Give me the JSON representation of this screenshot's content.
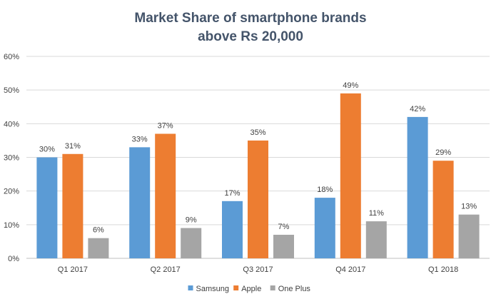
{
  "chart_data": {
    "type": "bar",
    "title_lines": [
      "Market Share of smartphone brands",
      "above Rs 20,000"
    ],
    "categories": [
      "Q1 2017",
      "Q2 2017",
      "Q3 2017",
      "Q4 2017",
      "Q1 2018"
    ],
    "series": [
      {
        "name": "Samsung",
        "color": "#5b9bd5",
        "values": [
          30,
          33,
          17,
          18,
          42
        ],
        "labels": [
          "30%",
          "33%",
          "17%",
          "18%",
          "42%"
        ]
      },
      {
        "name": "Apple",
        "color": "#ed7d31",
        "values": [
          31,
          37,
          35,
          49,
          29
        ],
        "labels": [
          "31%",
          "37%",
          "35%",
          "49%",
          "29%"
        ]
      },
      {
        "name": "One Plus",
        "color": "#a5a5a5",
        "values": [
          6,
          9,
          7,
          11,
          13
        ],
        "labels": [
          "6%",
          "9%",
          "7%",
          "11%",
          "13%"
        ]
      }
    ],
    "ylim": [
      0,
      60
    ],
    "yticks": [
      "0%",
      "10%",
      "20%",
      "30%",
      "40%",
      "50%",
      "60%"
    ],
    "grid": true,
    "legend_position": "bottom",
    "data_labels": true
  }
}
